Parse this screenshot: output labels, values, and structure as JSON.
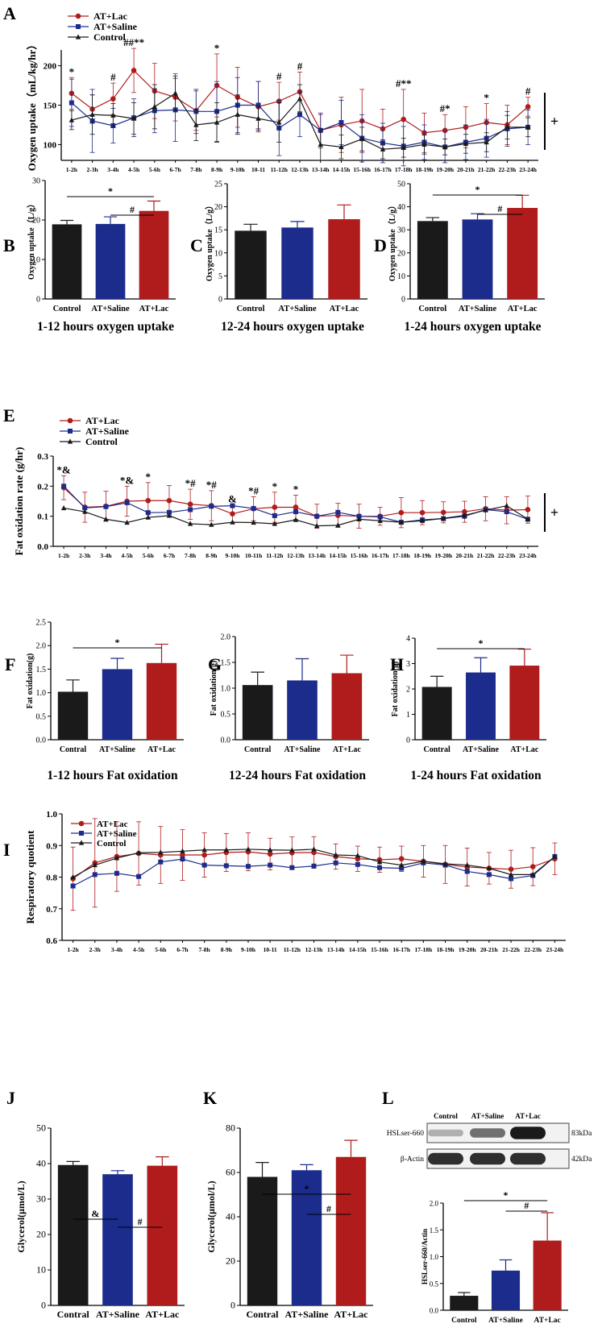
{
  "colors": {
    "lac": "#b01c1c",
    "saline": "#1c2c8c",
    "control": "#1a1a1a"
  },
  "hours": [
    "1-2h",
    "2-3h",
    "3-4h",
    "4-5h",
    "5-6h",
    "6-7h",
    "7-8h",
    "8-9h",
    "9-10h",
    "10-11",
    "11-12h",
    "12-13h",
    "13-14h",
    "14-15h",
    "15-16h",
    "16-17h",
    "17-18h",
    "18-19h",
    "19-20h",
    "20-21h",
    "21-22h",
    "22-23h",
    "23-24h"
  ],
  "hours_E": [
    "1-2h",
    "2-3h",
    "3-4h",
    "4-5h",
    "5-6h",
    "6-7h",
    "7-8h",
    "8-9h",
    "9-10h",
    "10-11h",
    "11-12h",
    "12-13h",
    "13-14h",
    "14-15h",
    "15-16h",
    "16-17h",
    "17-18h",
    "18-19h",
    "19-20h",
    "20-21h",
    "21-22h",
    "22-23h",
    "23-24h"
  ],
  "chart_data": [
    {
      "panel": "A",
      "type": "line",
      "ylabel": "Oxygen uptake（mL/kg/hr）",
      "ylim": [
        80,
        220
      ],
      "yticks": [
        100,
        150,
        200
      ],
      "legend": [
        "AT+Lac",
        "AT+Saline",
        "Control"
      ],
      "series": [
        {
          "name": "AT+Lac",
          "values": [
            165,
            145,
            158,
            194,
            168,
            160,
            143,
            175,
            160,
            148,
            155,
            167,
            118,
            125,
            130,
            120,
            132,
            115,
            118,
            122,
            128,
            125,
            148
          ],
          "errors": [
            20,
            18,
            20,
            28,
            35,
            30,
            25,
            40,
            38,
            32,
            24,
            25,
            20,
            35,
            40,
            25,
            38,
            25,
            20,
            26,
            24,
            25,
            12
          ]
        },
        {
          "name": "AT+Saline",
          "values": [
            153,
            130,
            124,
            134,
            143,
            144,
            142,
            142,
            150,
            150,
            121,
            138,
            118,
            128,
            108,
            102,
            98,
            103,
            97,
            103,
            108,
            120,
            122
          ],
          "errors": [
            30,
            40,
            22,
            24,
            28,
            40,
            28,
            38,
            35,
            30,
            35,
            28,
            22,
            28,
            30,
            25,
            25,
            22,
            20,
            22,
            24,
            22,
            22
          ]
        },
        {
          "name": "Control",
          "values": [
            131,
            138,
            137,
            133,
            148,
            165,
            125,
            128,
            138,
            133,
            128,
            158,
            100,
            97,
            107,
            94,
            96,
            100,
            97,
            101,
            103,
            122,
            122
          ],
          "errors": [
            12,
            25,
            15,
            20,
            28,
            22,
            20,
            25,
            25,
            15,
            25,
            18,
            20,
            15,
            15,
            12,
            12,
            12,
            10,
            12,
            12,
            15,
            12
          ]
        }
      ],
      "annotations": [
        {
          "at": "1-2h",
          "text": "*"
        },
        {
          "at": "3-4h",
          "text": "#"
        },
        {
          "at": "4-5h",
          "text": "##**"
        },
        {
          "at": "8-9h",
          "text": "*"
        },
        {
          "at": "11-12h",
          "text": "#"
        },
        {
          "at": "12-13h",
          "text": "#"
        },
        {
          "at": "17-18h",
          "text": "#**"
        },
        {
          "at": "19-20h",
          "text": "#*"
        },
        {
          "at": "21-22h",
          "text": "*"
        },
        {
          "at": "23-24h",
          "text": "#"
        }
      ],
      "bracket_label": "+"
    },
    {
      "panel": "B",
      "type": "bar",
      "ylabel": "Oxygen uptake（L/g）",
      "ylim": [
        0,
        30
      ],
      "yticks": [
        0,
        10,
        20,
        30
      ],
      "categories": [
        "Control",
        "AT+Saline",
        "AT+Lac"
      ],
      "values": [
        18.9,
        19.0,
        22.3
      ],
      "errors": [
        1.0,
        1.8,
        2.5
      ],
      "caption": "1-12 hours oxygen uptake",
      "sig": [
        {
          "from": 0,
          "to": 2,
          "label": "*"
        },
        {
          "from": 1,
          "to": 2,
          "label": "#"
        }
      ]
    },
    {
      "panel": "C",
      "type": "bar",
      "ylabel": "Oxygen uptake（L/g）",
      "ylim": [
        0,
        25
      ],
      "yticks": [
        0,
        5,
        10,
        15,
        20,
        25
      ],
      "categories": [
        "Control",
        "AT+Saline",
        "AT+Lac"
      ],
      "values": [
        14.8,
        15.5,
        17.3
      ],
      "errors": [
        1.4,
        1.3,
        3.1
      ],
      "caption": "12-24 hours oxygen uptake",
      "sig": []
    },
    {
      "panel": "D",
      "type": "bar",
      "ylabel": "Oxygen uptake（L/g）",
      "ylim": [
        0,
        50
      ],
      "yticks": [
        0,
        10,
        20,
        30,
        40,
        50
      ],
      "categories": [
        "Control",
        "AT+Saline",
        "AT+Lac"
      ],
      "values": [
        33.8,
        34.5,
        39.5
      ],
      "errors": [
        1.5,
        2.5,
        5.5
      ],
      "caption": "1-24 hours oxygen uptake",
      "sig": [
        {
          "from": 0,
          "to": 2,
          "label": "*"
        },
        {
          "from": 1,
          "to": 2,
          "label": "#"
        }
      ]
    },
    {
      "panel": "E",
      "type": "line",
      "ylabel": "Fat oxidation rate (g/hr)",
      "ylim": [
        0.0,
        0.3
      ],
      "yticks": [
        0.0,
        0.1,
        0.2,
        0.3
      ],
      "legend": [
        "AT+Lac",
        "AT+Saline",
        "Control"
      ],
      "series": [
        {
          "name": "AT+Lac",
          "values": [
            0.195,
            0.13,
            0.133,
            0.15,
            0.152,
            0.152,
            0.14,
            0.135,
            0.108,
            0.125,
            0.13,
            0.13,
            0.1,
            0.103,
            0.1,
            0.1,
            0.112,
            0.112,
            0.113,
            0.115,
            0.125,
            0.12,
            0.122
          ],
          "errors": [
            0.04,
            0.05,
            0.05,
            0.05,
            0.06,
            0.05,
            0.05,
            0.05,
            0.03,
            0.04,
            0.05,
            0.04,
            0.04,
            0.04,
            0.04,
            0.03,
            0.05,
            0.04,
            0.035,
            0.035,
            0.04,
            0.045,
            0.045
          ]
        },
        {
          "name": "AT+Saline",
          "values": [
            0.2,
            0.128,
            0.132,
            0.145,
            0.112,
            0.113,
            0.122,
            0.133,
            0.135,
            0.126,
            0.102,
            0.115,
            0.1,
            0.113,
            0.1,
            0.098,
            0.08,
            0.088,
            0.092,
            0.1,
            0.122,
            0.115,
            0.09
          ]
        },
        {
          "name": "Control",
          "values": [
            0.127,
            0.115,
            0.09,
            0.079,
            0.096,
            0.102,
            0.075,
            0.072,
            0.08,
            0.079,
            0.075,
            0.088,
            0.068,
            0.07,
            0.09,
            0.085,
            0.08,
            0.085,
            0.093,
            0.103,
            0.12,
            0.135,
            0.09
          ]
        }
      ],
      "annotations": [
        {
          "at": "1-2h",
          "text": "*&"
        },
        {
          "at": "4-5h",
          "text": "*&"
        },
        {
          "at": "5-6h",
          "text": "*"
        },
        {
          "at": "7-8h",
          "text": "*#"
        },
        {
          "at": "8-9h",
          "text": "*#"
        },
        {
          "at": "9-10h",
          "text": "&"
        },
        {
          "at": "10-11h",
          "text": "*#"
        },
        {
          "at": "11-12h",
          "text": "*"
        },
        {
          "at": "12-13h",
          "text": "*"
        }
      ],
      "bracket_label": "+"
    },
    {
      "panel": "F",
      "type": "bar",
      "ylabel": "Fat oxidation(g)",
      "ylim": [
        0.0,
        2.5
      ],
      "yticks": [
        0.0,
        0.5,
        1.0,
        1.5,
        2.0,
        2.5
      ],
      "categories": [
        "Contral",
        "AT+Saline",
        "AT+Lac"
      ],
      "values": [
        1.02,
        1.5,
        1.63
      ],
      "errors": [
        0.25,
        0.23,
        0.4
      ],
      "caption": "1-12 hours Fat oxidation",
      "sig": [
        {
          "from": 0,
          "to": 2,
          "label": "*"
        }
      ]
    },
    {
      "panel": "G",
      "type": "bar",
      "ylabel": "Fat oxidation(g)",
      "ylim": [
        0.0,
        2.0
      ],
      "yticks": [
        0.0,
        0.5,
        1.0,
        1.5,
        2.0
      ],
      "categories": [
        "Contral",
        "AT+Saline",
        "AT+Lac"
      ],
      "values": [
        1.06,
        1.15,
        1.29
      ],
      "errors": [
        0.25,
        0.42,
        0.35
      ],
      "caption": "12-24 hours Fat oxidation",
      "sig": []
    },
    {
      "panel": "H",
      "type": "bar",
      "ylabel": "Fat oxidation(g)",
      "ylim": [
        0,
        4
      ],
      "yticks": [
        0,
        1,
        2,
        3,
        4
      ],
      "categories": [
        "Contral",
        "AT+Saline",
        "AT+Lac"
      ],
      "values": [
        2.08,
        2.65,
        2.92
      ],
      "errors": [
        0.42,
        0.58,
        0.65
      ],
      "caption": "1-24 hours Fat oxidation",
      "sig": [
        {
          "from": 0,
          "to": 2,
          "label": "*"
        }
      ]
    },
    {
      "panel": "I",
      "type": "line",
      "ylabel": "Respiratory quotient",
      "ylim": [
        0.6,
        1.0
      ],
      "yticks": [
        0.6,
        0.7,
        0.8,
        0.9,
        1.0
      ],
      "legend": [
        "AT+Lac",
        "AT+Saline",
        "Control"
      ],
      "series": [
        {
          "name": "AT+Lac",
          "values": [
            0.795,
            0.845,
            0.865,
            0.875,
            0.87,
            0.87,
            0.87,
            0.878,
            0.88,
            0.873,
            0.877,
            0.878,
            0.865,
            0.858,
            0.855,
            0.858,
            0.85,
            0.84,
            0.832,
            0.828,
            0.825,
            0.833,
            0.858
          ],
          "errors": [
            0.1,
            0.14,
            0.11,
            0.1,
            0.09,
            0.08,
            0.07,
            0.06,
            0.06,
            0.05,
            0.05,
            0.05,
            0.04,
            0.04,
            0.04,
            0.04,
            0.05,
            0.06,
            0.06,
            0.05,
            0.06,
            0.06,
            0.05
          ]
        },
        {
          "name": "AT+Saline",
          "values": [
            0.772,
            0.808,
            0.812,
            0.802,
            0.848,
            0.857,
            0.838,
            0.836,
            0.834,
            0.838,
            0.83,
            0.835,
            0.845,
            0.84,
            0.83,
            0.828,
            0.845,
            0.838,
            0.818,
            0.808,
            0.795,
            0.805,
            0.865
          ]
        },
        {
          "name": "Control",
          "values": [
            0.8,
            0.838,
            0.86,
            0.877,
            0.878,
            0.882,
            0.886,
            0.886,
            0.888,
            0.886,
            0.885,
            0.888,
            0.87,
            0.868,
            0.848,
            0.838,
            0.85,
            0.842,
            0.838,
            0.828,
            0.808,
            0.808,
            0.865
          ]
        }
      ]
    },
    {
      "panel": "J",
      "type": "bar",
      "ylabel": "Glycerol(μmol/L)",
      "ylim": [
        0,
        50
      ],
      "yticks": [
        0,
        10,
        20,
        30,
        40,
        50
      ],
      "categories": [
        "Contral",
        "AT+Saline",
        "AT+Lac"
      ],
      "values": [
        39.6,
        37.0,
        39.4
      ],
      "errors": [
        1.0,
        1.0,
        2.5
      ],
      "sig": [
        {
          "from": 0,
          "to": 1,
          "label": "&"
        },
        {
          "from": 1,
          "to": 2,
          "label": "#"
        }
      ]
    },
    {
      "panel": "K",
      "type": "bar",
      "ylabel": "Glycerol(μmol/L)",
      "ylim": [
        0,
        80
      ],
      "yticks": [
        0,
        20,
        40,
        60,
        80
      ],
      "categories": [
        "Contral",
        "AT+Saline",
        "AT+Lac"
      ],
      "values": [
        58.0,
        61.0,
        67.0
      ],
      "errors": [
        6.5,
        2.5,
        7.5
      ],
      "sig": [
        {
          "from": 0,
          "to": 2,
          "label": "*"
        },
        {
          "from": 1,
          "to": 2,
          "label": "#"
        }
      ]
    },
    {
      "panel": "L",
      "type": "bar",
      "ylabel": "HSLser-660/Actin",
      "ylim": [
        0.0,
        2.0
      ],
      "yticks": [
        0.0,
        0.5,
        1.0,
        1.5,
        2.0
      ],
      "categories": [
        "Control",
        "AT+Saline",
        "AT+Lac"
      ],
      "values": [
        0.27,
        0.74,
        1.3
      ],
      "errors": [
        0.06,
        0.2,
        0.52
      ],
      "sig": [
        {
          "from": 0,
          "to": 2,
          "label": "*"
        },
        {
          "from": 1,
          "to": 2,
          "label": "#"
        }
      ]
    }
  ],
  "blot": {
    "lane_labels": [
      "Control",
      "AT+Saline",
      "AT+Lac"
    ],
    "rows": [
      {
        "label": "HSLser-660",
        "kda": "83kDa",
        "intensity": [
          0.25,
          0.55,
          0.95
        ]
      },
      {
        "label": "β-Actin",
        "kda": "42kDa",
        "intensity": [
          0.85,
          0.85,
          0.85
        ]
      }
    ]
  }
}
